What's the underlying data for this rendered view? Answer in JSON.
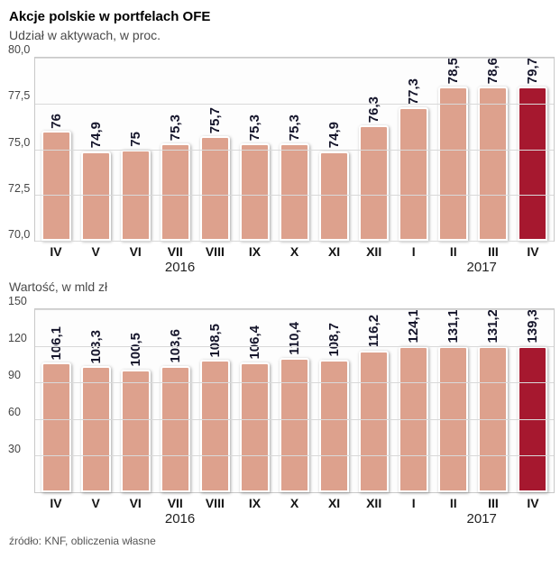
{
  "title": "Akcje polskie w portfelach OFE",
  "source": "źródło: KNF, obliczenia własne",
  "chart_data": [
    {
      "type": "bar",
      "title": "Udział w aktywach, w proc.",
      "categories": [
        "IV",
        "V",
        "VI",
        "VII",
        "VIII",
        "IX",
        "X",
        "XI",
        "XII",
        "I",
        "II",
        "III",
        "IV"
      ],
      "values": [
        76,
        74.9,
        75,
        75.3,
        75.7,
        75.3,
        75.3,
        74.9,
        76.3,
        77.3,
        78.5,
        78.6,
        79.7
      ],
      "value_labels": [
        "76",
        "74,9",
        "75",
        "75,3",
        "75,7",
        "75,3",
        "75,3",
        "74,9",
        "76,3",
        "77,3",
        "78,5",
        "78,6",
        "79,7"
      ],
      "ylim": [
        70,
        80
      ],
      "yticks": [
        70.0,
        72.5,
        75.0,
        77.5,
        80.0
      ],
      "ytick_labels": [
        "70,0",
        "72,5",
        "75,0",
        "77,5",
        "80,0"
      ],
      "grid": true,
      "legend": "none",
      "bar_color": "#dda18d",
      "highlight_color": "#a6182f",
      "highlight_index": 12,
      "years": [
        {
          "label": "2016",
          "left_pct": 28
        },
        {
          "label": "2017",
          "left_pct": 86
        }
      ]
    },
    {
      "type": "bar",
      "title": "Wartość, w mld zł",
      "categories": [
        "IV",
        "V",
        "VI",
        "VII",
        "VIII",
        "IX",
        "X",
        "XI",
        "XII",
        "I",
        "II",
        "III",
        "IV"
      ],
      "values": [
        106.1,
        103.3,
        100.5,
        103.6,
        108.5,
        106.4,
        110.4,
        108.7,
        116.2,
        124.1,
        131.1,
        131.2,
        139.3
      ],
      "value_labels": [
        "106,1",
        "103,3",
        "100,5",
        "103,6",
        "108,5",
        "106,4",
        "110,4",
        "108,7",
        "116,2",
        "124,1",
        "131,1",
        "131,2",
        "139,3"
      ],
      "ylim": [
        0,
        150
      ],
      "yticks": [
        30,
        60,
        90,
        120,
        150
      ],
      "ytick_labels": [
        "30",
        "60",
        "90",
        "120",
        "150"
      ],
      "grid": true,
      "legend": "none",
      "bar_color": "#dda18d",
      "highlight_color": "#a6182f",
      "highlight_index": 12,
      "years": [
        {
          "label": "2016",
          "left_pct": 28
        },
        {
          "label": "2017",
          "left_pct": 86
        }
      ]
    }
  ]
}
